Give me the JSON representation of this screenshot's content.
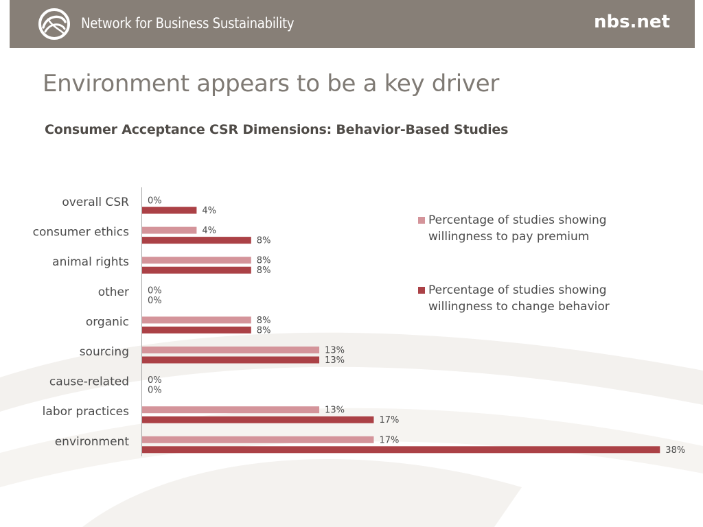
{
  "header": {
    "org_name": "Network for Business Sustainability",
    "site_url": "nbs.net",
    "logo_icon": "circular-swirl-logo"
  },
  "slide": {
    "title": "Environment appears to be a key driver"
  },
  "chart_data": {
    "type": "bar",
    "orientation": "horizontal",
    "title": "Consumer Acceptance CSR Dimensions: Behavior-Based Studies",
    "categories": [
      "overall CSR",
      "consumer ethics",
      "animal rights",
      "other",
      "organic",
      "sourcing",
      "cause-related",
      "labor practices",
      "environment"
    ],
    "series": [
      {
        "name": "Percentage of studies showing willingness to pay premium",
        "color": "#d4949a",
        "values": [
          0,
          4,
          8,
          0,
          8,
          13,
          0,
          13,
          17
        ],
        "labels": [
          "0%",
          "4%",
          "8%",
          "0%",
          "8%",
          "13%",
          "0%",
          "13%",
          "17%"
        ]
      },
      {
        "name": "Percentage of studies showing willingness to change behavior",
        "color": "#ab4146",
        "values": [
          4,
          8,
          8,
          0,
          8,
          13,
          0,
          17,
          38
        ],
        "labels": [
          "4%",
          "8%",
          "8%",
          "0%",
          "8%",
          "13%",
          "0%",
          "17%",
          "38%"
        ]
      }
    ],
    "xlim": [
      0,
      38
    ],
    "grid": false,
    "legend_position": "right"
  }
}
